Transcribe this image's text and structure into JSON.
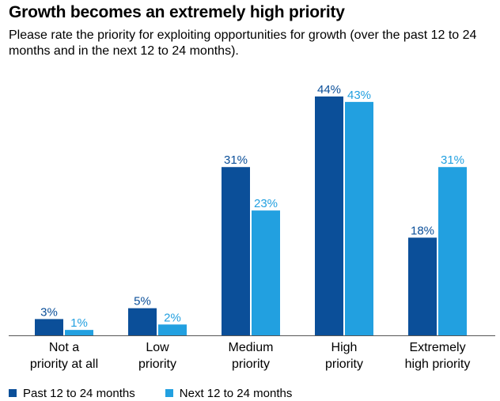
{
  "colors": {
    "past": "#0b4f99",
    "next": "#22a0e0",
    "axis": "#555555",
    "text": "#000000"
  },
  "chart_data": {
    "type": "bar",
    "title": "Growth becomes an extremely high priority",
    "subtitle": "Please rate the priority for exploiting opportunities for growth (over the past 12 to 24 months and in the next 12 to 24 months).",
    "categories": [
      [
        "Not a",
        "priority at all"
      ],
      [
        "Low",
        "priority"
      ],
      [
        "Medium",
        "priority"
      ],
      [
        "High",
        "priority"
      ],
      [
        "Extremely",
        "high priority"
      ]
    ],
    "series": [
      {
        "name": "Past 12 to 24 months",
        "values": [
          3,
          5,
          31,
          44,
          18
        ],
        "labels": [
          "3%",
          "5%",
          "31%",
          "44%",
          "18%"
        ]
      },
      {
        "name": "Next 12 to 24 months",
        "values": [
          1,
          2,
          23,
          43,
          31
        ],
        "labels": [
          "1%",
          "2%",
          "23%",
          "43%",
          "31%"
        ]
      }
    ],
    "xlabel": "",
    "ylabel": "",
    "ylim": [
      0,
      46
    ],
    "grid": false,
    "legend": "bottom-left"
  }
}
